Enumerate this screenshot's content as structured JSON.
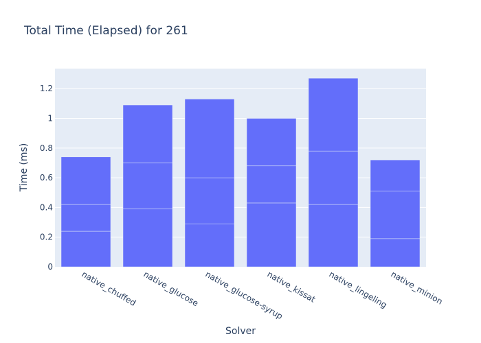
{
  "chart_data": {
    "type": "bar",
    "title": "Total Time (Elapsed) for 261",
    "xlabel": "Solver",
    "ylabel": "Time (ms)",
    "ylim": [
      0,
      1.335
    ],
    "yticks": [
      0,
      0.2,
      0.4,
      0.6,
      0.8,
      1,
      1.2
    ],
    "ytick_labels": [
      "0",
      "0.2",
      "0.4",
      "0.6",
      "0.8",
      "1",
      "1.2"
    ],
    "grid": true,
    "stacked": true,
    "categories": [
      "native_chuffed",
      "native_glucose",
      "native_glucose-syrup",
      "native_kissat",
      "native_lingeling",
      "native_minion"
    ],
    "segments": [
      [
        0.24,
        0.18,
        0.32
      ],
      [
        0.39,
        0.31,
        0.39
      ],
      [
        0.29,
        0.31,
        0.53
      ],
      [
        0.43,
        0.25,
        0.32
      ],
      [
        0.42,
        0.36,
        0.49
      ],
      [
        0.19,
        0.32,
        0.21
      ]
    ],
    "totals": [
      0.74,
      1.09,
      1.13,
      1.0,
      1.27,
      0.72
    ],
    "colors": {
      "bar": "#636efa",
      "plot_bg": "#e5ecf6",
      "grid": "#ffffff",
      "text": "#2a3f5f"
    }
  }
}
